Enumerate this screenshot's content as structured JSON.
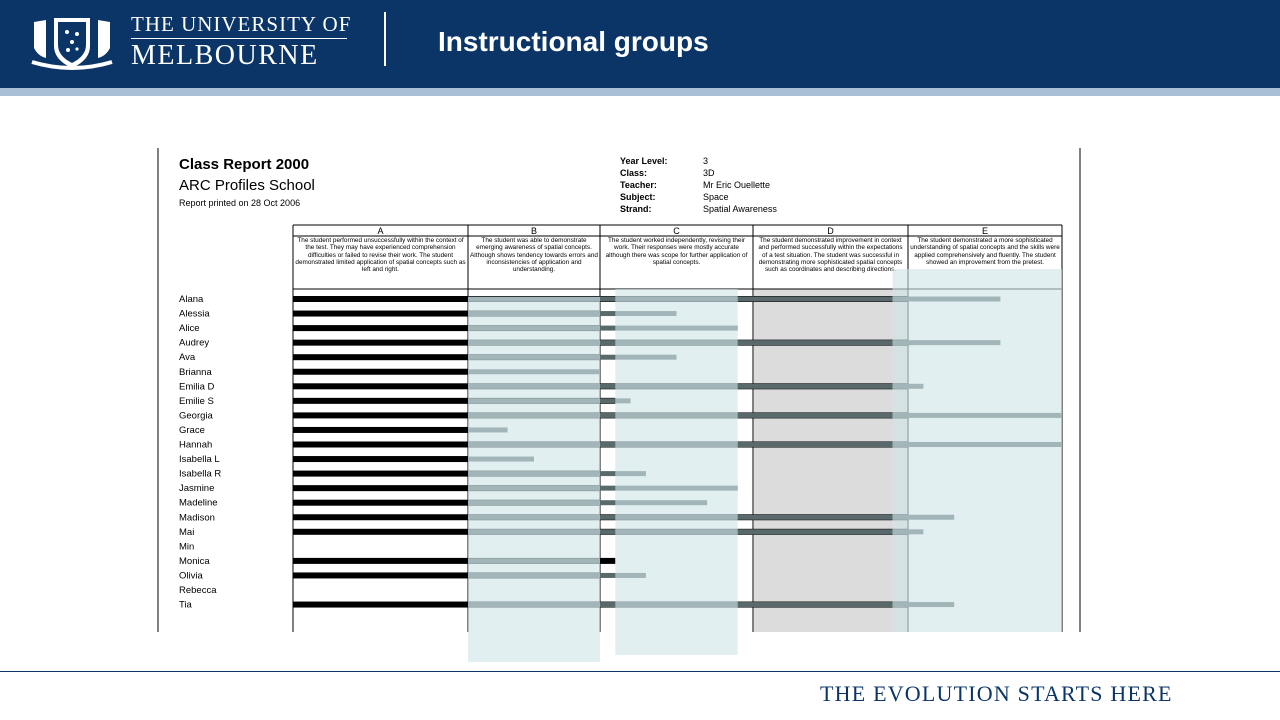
{
  "header": {
    "university_line1": "THE UNIVERSITY OF",
    "university_line2": "MELBOURNE",
    "slide_title": "Instructional groups",
    "logo_icon": "university-crest-icon"
  },
  "footer": {
    "tagline": "THE EVOLUTION STARTS HERE"
  },
  "colors": {
    "brand_navy": "#0b3567",
    "stripe": "#a9bfd6",
    "highlight": "#cfe5e8",
    "teacher_bar": "#000000",
    "student_bar": "#5a6a6c",
    "zone_d": "#dcdcdc"
  },
  "report": {
    "title": "Class Report 2000",
    "school": "ARC Profiles School",
    "printed": "Report printed on 28 Oct 2006",
    "meta": [
      {
        "key": "Year Level:",
        "value": "3"
      },
      {
        "key": "Class:",
        "value": "3D"
      },
      {
        "key": "Teacher:",
        "value": "Mr Eric Ouellette"
      },
      {
        "key": "Subject:",
        "value": "Space"
      },
      {
        "key": "Strand:",
        "value": "Spatial Awareness"
      }
    ]
  },
  "chart_data": {
    "type": "bar",
    "orientation": "horizontal",
    "levels": [
      {
        "label": "A",
        "description": "The student performed unsuccessfully within the context of the test. They may have experienced comprehension difficulties or failed to revise their work. The student demonstrated limited application of spatial concepts such as left and right."
      },
      {
        "label": "B",
        "description": "The student was able to demonstrate emerging awareness of spatial concepts. Although shows tendency towards errors and inconsistencies of application and understanding."
      },
      {
        "label": "C",
        "description": "The student worked independently, revising their work. Their responses were mostly accurate although there was scope for further application of spatial concepts."
      },
      {
        "label": "D",
        "description": "The student demonstrated improvement in context and performed successfully within the expectations of a test situation. The student was successful in demonstrating more sophisticated spatial concepts such as coordinates and describing directions."
      },
      {
        "label": "E",
        "description": "The student demonstrated a more sophisticated understanding of spatial concepts and the skills were applied comprehensively and fluently. The student showed an improvement from the pretest."
      }
    ],
    "students": [
      {
        "name": "Alana",
        "teacher_end": 4.0,
        "student_end": 4.6
      },
      {
        "name": "Alessia",
        "teacher_end": 2.0,
        "student_end": 2.5
      },
      {
        "name": "Alice",
        "teacher_end": 2.0,
        "student_end": 2.9
      },
      {
        "name": "Audrey",
        "teacher_end": 4.0,
        "student_end": 4.6
      },
      {
        "name": "Ava",
        "teacher_end": 2.0,
        "student_end": 2.5
      },
      {
        "name": "Brianna",
        "teacher_end": 1.0,
        "student_end": 2.0
      },
      {
        "name": "Emilia D",
        "teacher_end": 4.0,
        "student_end": 4.1
      },
      {
        "name": "Emilie S",
        "teacher_end": 2.1,
        "student_end": 2.2
      },
      {
        "name": "Georgia",
        "teacher_end": 4.0,
        "student_end": 5.0
      },
      {
        "name": "Grace",
        "teacher_end": 1.0,
        "student_end": 1.3
      },
      {
        "name": "Hannah",
        "teacher_end": 4.0,
        "student_end": 5.0
      },
      {
        "name": "Isabella L",
        "teacher_end": 1.0,
        "student_end": 1.5
      },
      {
        "name": "Isabella R",
        "teacher_end": 2.0,
        "student_end": 2.3
      },
      {
        "name": "Jasmine",
        "teacher_end": 2.0,
        "student_end": 2.9
      },
      {
        "name": "Madeline",
        "teacher_end": 2.0,
        "student_end": 2.7
      },
      {
        "name": "Madison",
        "teacher_end": 4.0,
        "student_end": 4.3
      },
      {
        "name": "Mai",
        "teacher_end": 4.0,
        "student_end": 4.1
      },
      {
        "name": "Min",
        "teacher_end": null,
        "student_end": null
      },
      {
        "name": "Monica",
        "teacher_end": 2.1,
        "student_end": 2.0
      },
      {
        "name": "Olivia",
        "teacher_end": 2.0,
        "student_end": 2.3
      },
      {
        "name": "Rebecca",
        "teacher_end": null,
        "student_end": null
      },
      {
        "name": "Tia",
        "teacher_end": 4.0,
        "student_end": 4.3
      }
    ],
    "highlight_groups": [
      {
        "level": "B",
        "from": 1.0,
        "to": 2.0
      },
      {
        "level": "C",
        "from": 2.1,
        "to": 2.9
      },
      {
        "level": "E",
        "from": 3.9,
        "to": 5.1
      }
    ],
    "grid": true,
    "legend": "none"
  }
}
